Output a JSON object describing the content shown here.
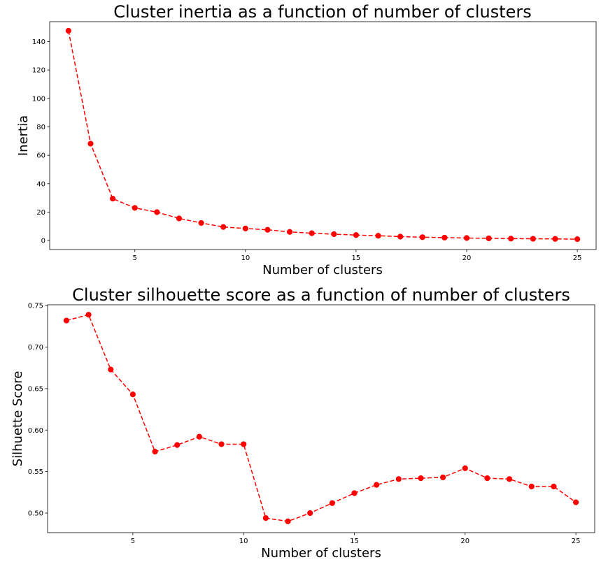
{
  "colors": {
    "series": "#ff0000",
    "axes": "#000000",
    "background": "#ffffff"
  },
  "chart_data": [
    {
      "type": "line",
      "title": "Cluster inertia as a function of number of clusters",
      "xlabel": "Number of clusters",
      "ylabel": "Inertia",
      "xlim": [
        1.15,
        25.85
      ],
      "ylim": [
        -6.3,
        154
      ],
      "xticks": [
        5,
        10,
        15,
        20,
        25
      ],
      "xtick_labels": [
        "5",
        "10",
        "15",
        "20",
        "25"
      ],
      "yticks": [
        0,
        20,
        40,
        60,
        80,
        100,
        120,
        140
      ],
      "ytick_labels": [
        "0",
        "20",
        "40",
        "60",
        "80",
        "100",
        "120",
        "140"
      ],
      "grid": false,
      "line_style": "dashed",
      "marker": "circle",
      "series": [
        {
          "x": [
            2,
            3,
            4,
            5,
            6,
            7,
            8,
            9,
            10,
            11,
            12,
            13,
            14,
            15,
            16,
            17,
            18,
            19,
            20,
            21,
            22,
            23,
            24,
            25
          ],
          "values": [
            147.6,
            68.2,
            29.5,
            23.0,
            20.0,
            15.6,
            12.4,
            9.6,
            8.5,
            7.6,
            6.1,
            5.2,
            4.5,
            3.9,
            3.4,
            2.8,
            2.4,
            2.1,
            1.8,
            1.6,
            1.4,
            1.3,
            1.2,
            1.0
          ]
        }
      ]
    },
    {
      "type": "line",
      "title": "Cluster silhouette score as a function of number of clusters",
      "xlabel": "Number of clusters",
      "ylabel": "Silhuette Score",
      "xlim": [
        1.15,
        25.85
      ],
      "ylim": [
        0.4764,
        0.751
      ],
      "xticks": [
        5,
        10,
        15,
        20,
        25
      ],
      "xtick_labels": [
        "5",
        "10",
        "15",
        "20",
        "25"
      ],
      "yticks": [
        0.5,
        0.55,
        0.6,
        0.65,
        0.7,
        0.75
      ],
      "ytick_labels": [
        "0.50",
        "0.55",
        "0.60",
        "0.65",
        "0.70",
        "0.75"
      ],
      "grid": false,
      "line_style": "dashed",
      "marker": "circle",
      "series": [
        {
          "x": [
            2,
            3,
            4,
            5,
            6,
            7,
            8,
            9,
            10,
            11,
            12,
            13,
            14,
            15,
            16,
            17,
            18,
            19,
            20,
            21,
            22,
            23,
            24,
            25
          ],
          "values": [
            0.732,
            0.739,
            0.673,
            0.643,
            0.574,
            0.582,
            0.592,
            0.583,
            0.583,
            0.494,
            0.49,
            0.5,
            0.512,
            0.524,
            0.534,
            0.541,
            0.542,
            0.543,
            0.554,
            0.542,
            0.541,
            0.532,
            0.532,
            0.513
          ]
        }
      ]
    }
  ]
}
